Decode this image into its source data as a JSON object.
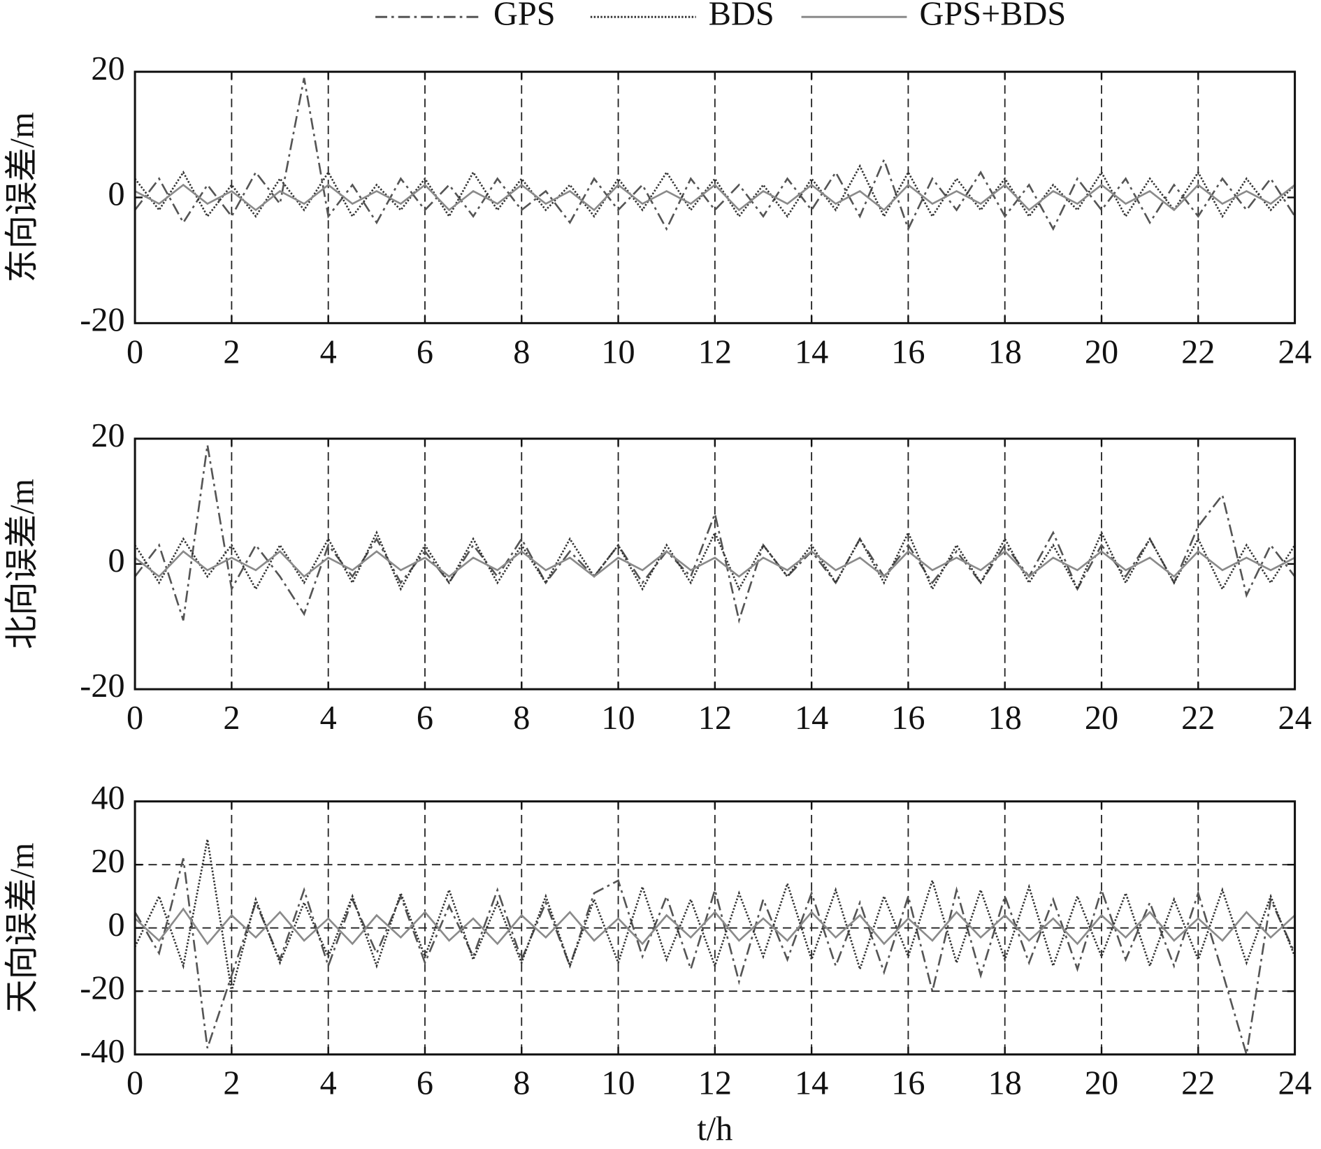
{
  "chart_data": [
    {
      "type": "line",
      "ylabel": "东向误差/m",
      "ylim": [
        -20,
        20
      ],
      "yticks": [
        -20,
        0,
        20
      ],
      "xlim": [
        0,
        24
      ],
      "xticks": [
        0,
        2,
        4,
        6,
        8,
        10,
        12,
        14,
        16,
        18,
        20,
        22,
        24
      ],
      "xgrid": true,
      "ygrid": false,
      "x": [
        0,
        0.5,
        1,
        1.5,
        2,
        2.5,
        3,
        3.5,
        4,
        4.5,
        5,
        5.5,
        6,
        6.5,
        7,
        7.5,
        8,
        8.5,
        9,
        9.5,
        10,
        10.5,
        11,
        11.5,
        12,
        12.5,
        13,
        13.5,
        14,
        14.5,
        15,
        15.5,
        16,
        16.5,
        17,
        17.5,
        18,
        18.5,
        19,
        19.5,
        20,
        20.5,
        21,
        21.5,
        22,
        22.5,
        23,
        23.5,
        24
      ],
      "series": [
        {
          "name": "GPS",
          "color": "#555555",
          "linestyle": "dashdot",
          "values": [
            -2,
            3,
            -4,
            2,
            -3,
            4,
            -1,
            19,
            -3,
            2,
            -4,
            3,
            -2,
            2,
            -3,
            3,
            -2,
            1,
            -4,
            3,
            -2,
            2,
            -5,
            3,
            -2,
            2,
            -3,
            3,
            -2,
            4,
            -3,
            6,
            -5,
            3,
            -2,
            4,
            -3,
            2,
            -5,
            3,
            -2,
            3,
            -4,
            2,
            -3,
            3,
            -2,
            3,
            -3
          ]
        },
        {
          "name": "BDS",
          "color": "#333333",
          "linestyle": "dotted",
          "values": [
            3,
            -2,
            4,
            -3,
            2,
            -3,
            3,
            -2,
            4,
            -3,
            2,
            -2,
            3,
            -3,
            4,
            -2,
            3,
            -2,
            2,
            -3,
            3,
            -2,
            4,
            -2,
            3,
            -3,
            2,
            -3,
            3,
            -2,
            5,
            -3,
            4,
            -3,
            3,
            -2,
            3,
            -3,
            2,
            -2,
            4,
            -3,
            3,
            -2,
            4,
            -3,
            3,
            -2,
            2
          ]
        },
        {
          "name": "GPS+BDS",
          "color": "#8a8a8a",
          "linestyle": "solid",
          "values": [
            1,
            -1,
            2,
            -1,
            1,
            -2,
            1,
            -1,
            2,
            -1,
            1,
            -1,
            2,
            -2,
            1,
            -1,
            2,
            -1,
            1,
            -2,
            2,
            -1,
            1,
            -1,
            2,
            -2,
            1,
            -1,
            2,
            -1,
            1,
            -2,
            2,
            -1,
            1,
            -1,
            2,
            -2,
            1,
            -1,
            2,
            -1,
            1,
            -2,
            2,
            -1,
            1,
            -1,
            2
          ]
        }
      ]
    },
    {
      "type": "line",
      "ylabel": "北向误差/m",
      "ylim": [
        -20,
        20
      ],
      "yticks": [
        -20,
        0,
        20
      ],
      "xlim": [
        0,
        24
      ],
      "xticks": [
        0,
        2,
        4,
        6,
        8,
        10,
        12,
        14,
        16,
        18,
        20,
        22,
        24
      ],
      "xgrid": true,
      "ygrid": false,
      "x": [
        0,
        0.5,
        1,
        1.5,
        2,
        2.5,
        3,
        3.5,
        4,
        4.5,
        5,
        5.5,
        6,
        6.5,
        7,
        7.5,
        8,
        8.5,
        9,
        9.5,
        10,
        10.5,
        11,
        11.5,
        12,
        12.5,
        13,
        13.5,
        14,
        14.5,
        15,
        15.5,
        16,
        16.5,
        17,
        17.5,
        18,
        18.5,
        19,
        19.5,
        20,
        20.5,
        21,
        21.5,
        22,
        22.5,
        23,
        23.5,
        24
      ],
      "series": [
        {
          "name": "GPS",
          "color": "#555555",
          "linestyle": "dashdot",
          "values": [
            -2,
            3,
            -9,
            19,
            -4,
            3,
            -2,
            -8,
            3,
            -2,
            4,
            -3,
            2,
            -3,
            3,
            -2,
            4,
            -3,
            2,
            -2,
            3,
            -3,
            2,
            -2,
            8,
            -9,
            3,
            -2,
            2,
            -3,
            4,
            -2,
            3,
            -3,
            2,
            -3,
            3,
            -2,
            5,
            -4,
            3,
            -2,
            4,
            -3,
            6,
            11,
            -5,
            3,
            -2
          ]
        },
        {
          "name": "BDS",
          "color": "#333333",
          "linestyle": "dotted",
          "values": [
            3,
            -3,
            4,
            -2,
            3,
            -4,
            3,
            -3,
            4,
            -3,
            5,
            -4,
            3,
            -3,
            4,
            -3,
            3,
            -3,
            4,
            -2,
            3,
            -4,
            3,
            -3,
            5,
            -4,
            3,
            -2,
            3,
            -3,
            4,
            -3,
            5,
            -4,
            3,
            -3,
            4,
            -3,
            3,
            -4,
            5,
            -3,
            4,
            -3,
            4,
            -4,
            3,
            -3,
            3
          ]
        },
        {
          "name": "GPS+BDS",
          "color": "#8a8a8a",
          "linestyle": "solid",
          "values": [
            1,
            -2,
            2,
            -1,
            1,
            -1,
            2,
            -2,
            1,
            -1,
            2,
            -1,
            1,
            -2,
            1,
            -1,
            2,
            -1,
            1,
            -2,
            1,
            -1,
            2,
            -1,
            1,
            -2,
            1,
            -1,
            2,
            -1,
            1,
            -2,
            2,
            -1,
            1,
            -1,
            2,
            -2,
            1,
            -1,
            2,
            -1,
            1,
            -2,
            2,
            -1,
            1,
            -1,
            1
          ]
        }
      ]
    },
    {
      "type": "line",
      "ylabel": "天向误差/m",
      "xlabel": "t/h",
      "ylim": [
        -40,
        40
      ],
      "yticks": [
        -40,
        -20,
        0,
        20,
        40
      ],
      "xlim": [
        0,
        24
      ],
      "xticks": [
        0,
        2,
        4,
        6,
        8,
        10,
        12,
        14,
        16,
        18,
        20,
        22,
        24
      ],
      "xgrid": true,
      "ygrid": true,
      "x": [
        0,
        0.5,
        1,
        1.5,
        2,
        2.5,
        3,
        3.5,
        4,
        4.5,
        5,
        5.5,
        6,
        6.5,
        7,
        7.5,
        8,
        8.5,
        9,
        9.5,
        10,
        10.5,
        11,
        11.5,
        12,
        12.5,
        13,
        13.5,
        14,
        14.5,
        15,
        15.5,
        16,
        16.5,
        17,
        17.5,
        18,
        18.5,
        19,
        19.5,
        20,
        20.5,
        21,
        21.5,
        22,
        22.5,
        23,
        23.5,
        24
      ],
      "series": [
        {
          "name": "GPS",
          "color": "#555555",
          "linestyle": "dashdot",
          "values": [
            5,
            -8,
            22,
            -38,
            -15,
            8,
            -10,
            12,
            -12,
            9,
            -8,
            10,
            -11,
            7,
            -9,
            12,
            -10,
            8,
            -12,
            11,
            15,
            -9,
            10,
            -13,
            12,
            -17,
            9,
            -10,
            11,
            -12,
            8,
            -14,
            10,
            -20,
            12,
            -15,
            10,
            -11,
            9,
            -13,
            12,
            -10,
            8,
            -12,
            11,
            -14,
            -40,
            9,
            -8
          ]
        },
        {
          "name": "BDS",
          "color": "#333333",
          "linestyle": "dotted",
          "values": [
            -6,
            10,
            -12,
            28,
            -20,
            9,
            -11,
            8,
            -9,
            10,
            -12,
            11,
            -9,
            12,
            -10,
            8,
            -11,
            10,
            -12,
            9,
            -11,
            13,
            -10,
            9,
            -12,
            11,
            -9,
            14,
            -10,
            12,
            -13,
            10,
            -9,
            15,
            -11,
            12,
            -10,
            13,
            -12,
            10,
            -9,
            11,
            -12,
            9,
            -10,
            12,
            -11,
            10,
            -9
          ]
        },
        {
          "name": "GPS+BDS",
          "color": "#8a8a8a",
          "linestyle": "solid",
          "values": [
            3,
            -4,
            6,
            -5,
            4,
            -3,
            5,
            -4,
            3,
            -5,
            4,
            -3,
            5,
            -4,
            3,
            -5,
            4,
            -3,
            5,
            -4,
            3,
            -5,
            4,
            -3,
            5,
            -4,
            3,
            -4,
            5,
            -3,
            4,
            -5,
            3,
            -4,
            5,
            -3,
            4,
            -4,
            3,
            -5,
            4,
            -3,
            5,
            -4,
            3,
            -4,
            5,
            -3,
            4
          ]
        }
      ]
    }
  ]
}
